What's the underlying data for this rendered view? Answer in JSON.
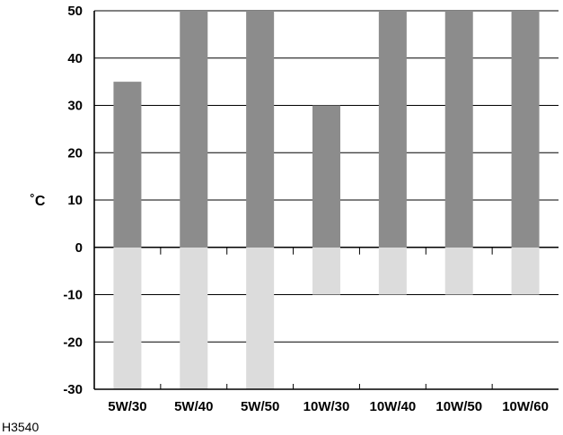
{
  "chart_data": {
    "type": "bar",
    "categories": [
      "5W/30",
      "5W/40",
      "5W/50",
      "10W/30",
      "10W/40",
      "10W/50",
      "10W/60"
    ],
    "series": [
      {
        "values": [
          35,
          50,
          50,
          30,
          50,
          50,
          50
        ]
      },
      {
        "values": [
          -30,
          -30,
          -30,
          -10,
          -10,
          -10,
          -10
        ]
      }
    ],
    "ylabel": "˚C",
    "yticks": [
      50,
      40,
      30,
      20,
      10,
      0,
      -10,
      -20,
      -30
    ],
    "ylim": [
      -30,
      50
    ],
    "grid": true,
    "colors": {
      "upper": "#8c8c8c",
      "lower": "#dcdcdc",
      "axis": "#000000"
    }
  },
  "figure_code": "H3540"
}
